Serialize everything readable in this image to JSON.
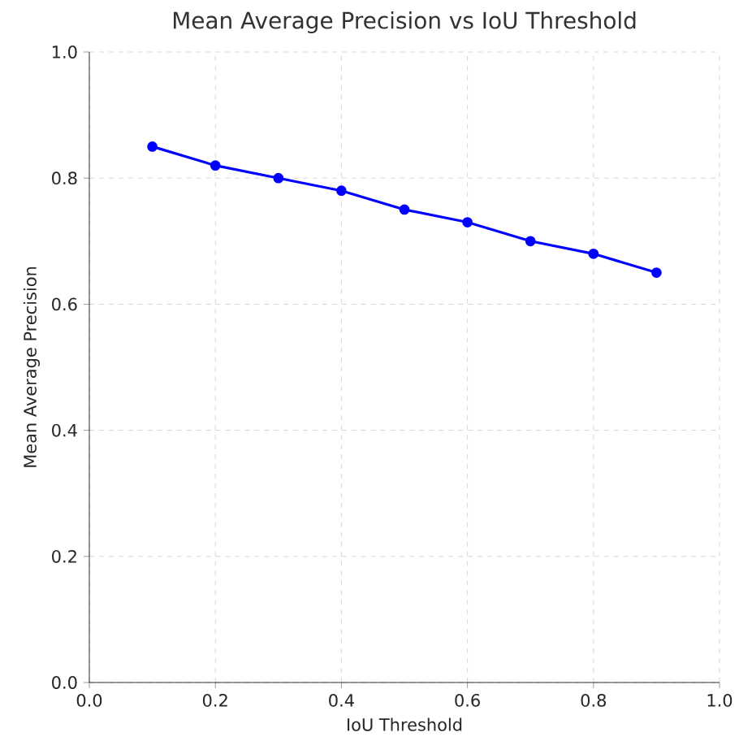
{
  "chart_data": {
    "type": "line",
    "title": "Mean Average Precision vs IoU Threshold",
    "xlabel": "IoU Threshold",
    "ylabel": "Mean Average Precision",
    "x": [
      0.1,
      0.2,
      0.3,
      0.4,
      0.5,
      0.6,
      0.7,
      0.8,
      0.9
    ],
    "series": [
      {
        "color": "#0000ff",
        "values": [
          0.85,
          0.82,
          0.8,
          0.78,
          0.75,
          0.73,
          0.7,
          0.68,
          0.65
        ]
      }
    ],
    "xlim": [
      0.0,
      1.0
    ],
    "ylim": [
      0.0,
      1.0
    ],
    "xticks": [
      {
        "value": 0.0,
        "label": "0.0"
      },
      {
        "value": 0.2,
        "label": "0.2"
      },
      {
        "value": 0.4,
        "label": "0.4"
      },
      {
        "value": 0.6,
        "label": "0.6"
      },
      {
        "value": 0.8,
        "label": "0.8"
      },
      {
        "value": 1.0,
        "label": "1.0"
      }
    ],
    "yticks": [
      {
        "value": 0.0,
        "label": "0.0"
      },
      {
        "value": 0.2,
        "label": "0.2"
      },
      {
        "value": 0.4,
        "label": "0.4"
      },
      {
        "value": 0.6,
        "label": "0.6"
      },
      {
        "value": 0.8,
        "label": "0.8"
      },
      {
        "value": 1.0,
        "label": "1.0"
      }
    ],
    "grid": true,
    "marker": "circle",
    "line_style": "solid"
  }
}
